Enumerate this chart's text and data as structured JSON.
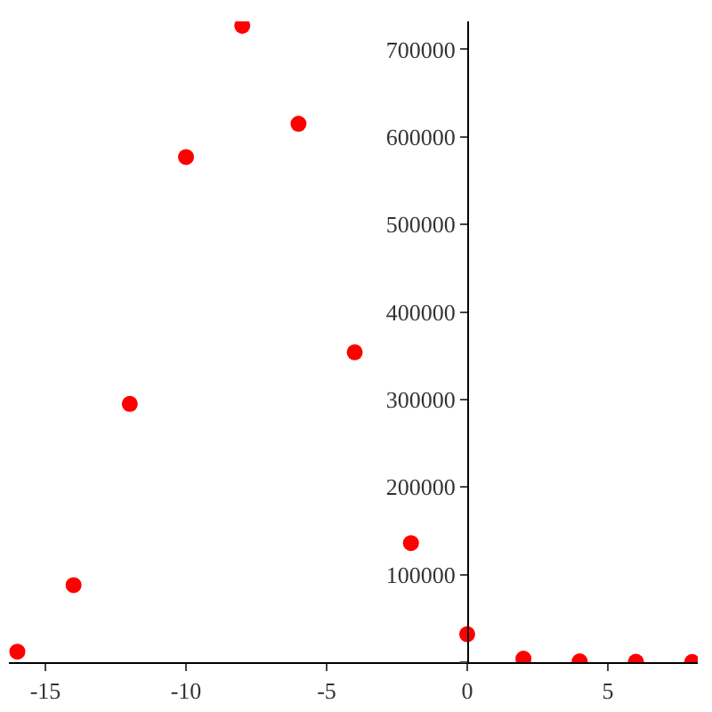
{
  "chart_data": {
    "type": "scatter",
    "x": [
      -16,
      -14,
      -12,
      -10,
      -8,
      -6,
      -4,
      -2,
      0,
      2,
      4,
      6,
      8
    ],
    "values": [
      12000,
      88000,
      295000,
      577000,
      727000,
      615000,
      354000,
      136000,
      32000,
      4000,
      1000,
      500,
      200
    ],
    "color": "#ff0000",
    "marker": "circle",
    "grid": false,
    "legend": false,
    "xlim": [
      -16.3,
      8.2
    ],
    "ylim": [
      0,
      732000
    ],
    "xticks": [
      -15,
      -10,
      -5,
      0,
      5
    ],
    "yticks": [
      {
        "value": 0,
        "label": null
      },
      100000,
      200000,
      300000,
      400000,
      500000,
      600000,
      700000
    ]
  }
}
